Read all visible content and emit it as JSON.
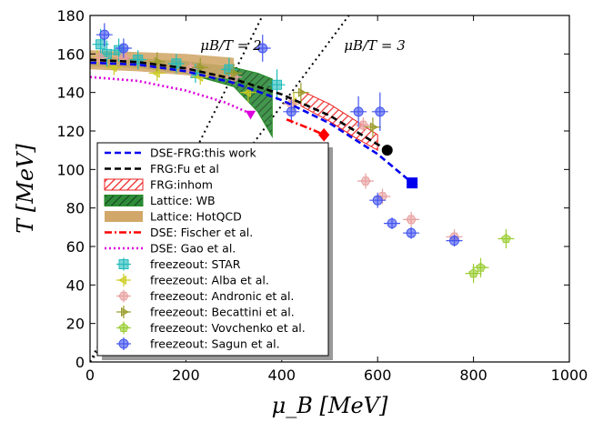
{
  "chart_data": {
    "type": "scatter",
    "xlabel": "μ_B [MeV]",
    "ylabel": "T [MeV]",
    "xlim": [
      0,
      1000
    ],
    "ylim": [
      0,
      180
    ],
    "xticks": [
      0,
      200,
      400,
      600,
      800,
      1000
    ],
    "yticks": [
      0,
      20,
      40,
      60,
      80,
      100,
      120,
      140,
      160,
      180
    ],
    "grid": false,
    "legend_position": "lower-left",
    "annotations": [
      {
        "text": "μB/T = 2",
        "x": 230,
        "y": 162
      },
      {
        "text": "μB/T = 3",
        "x": 530,
        "y": 162
      }
    ],
    "series": [
      {
        "name": "DSE-FRG:this work",
        "kind": "line",
        "style": "dashed",
        "color": "#0000ee",
        "x": [
          0,
          100,
          200,
          300,
          400,
          500,
          600,
          672
        ],
        "y": [
          155.5,
          154.5,
          151,
          145,
          136,
          124,
          108,
          93
        ],
        "endpoint": {
          "x": 672,
          "y": 93,
          "marker": "square",
          "color": "#0000ee"
        }
      },
      {
        "name": "FRG:Fu et al",
        "kind": "line",
        "style": "dashed",
        "color": "#000000",
        "x": [
          0,
          100,
          200,
          300,
          400,
          500,
          600,
          620
        ],
        "y": [
          157,
          155.8,
          152.5,
          147,
          139,
          128,
          113,
          110
        ],
        "endpoint": {
          "x": 620,
          "y": 110,
          "marker": "circle",
          "color": "#000000"
        }
      },
      {
        "name": "FRG:inhom",
        "kind": "band",
        "fill": "hatch",
        "color": "#ee2222",
        "upper": {
          "x": [
            440,
            500,
            550,
            600
          ],
          "y": [
            141,
            134,
            126,
            118
          ]
        },
        "lower": {
          "x": [
            440,
            500,
            550,
            600
          ],
          "y": [
            133,
            125,
            117,
            110
          ]
        }
      },
      {
        "name": "Lattice: WB",
        "kind": "band",
        "fill": "hatch",
        "color": "#228b22",
        "upper": {
          "x": [
            0,
            100,
            200,
            300,
            350,
            380
          ],
          "y": [
            158,
            157.5,
            156,
            153,
            150,
            147
          ]
        },
        "lower": {
          "x": [
            0,
            100,
            200,
            300,
            350,
            380
          ],
          "y": [
            154,
            153,
            150,
            143,
            130,
            117
          ]
        }
      },
      {
        "name": "Lattice: HotQCD",
        "kind": "band",
        "fill": "solid",
        "color": "#d2a86a",
        "upper": {
          "x": [
            0,
            100,
            200,
            300
          ],
          "y": [
            162,
            161,
            160,
            158
          ]
        },
        "lower": {
          "x": [
            0,
            100,
            200,
            300
          ],
          "y": [
            152,
            151,
            149,
            147
          ]
        }
      },
      {
        "name": "DSE: Fischer et al.",
        "kind": "line",
        "style": "dashdot",
        "color": "#ff0000",
        "x": [
          410,
          440,
          470,
          488
        ],
        "y": [
          126,
          123,
          120,
          118
        ],
        "endpoint": {
          "x": 488,
          "y": 118,
          "marker": "diamond",
          "color": "#ff0000"
        }
      },
      {
        "name": "DSE: Gao et al.",
        "kind": "line",
        "style": "dotted",
        "color": "#dd00dd",
        "x": [
          0,
          100,
          200,
          280,
          335
        ],
        "y": [
          148,
          146,
          141,
          135,
          129
        ],
        "endpoint": {
          "x": 335,
          "y": 129,
          "marker": "triangle-down",
          "color": "#dd00dd"
        }
      },
      {
        "name": "freezeout: STAR",
        "kind": "points",
        "marker": "square",
        "color": "#22bbbb",
        "points": [
          [
            22,
            165,
            8
          ],
          [
            35,
            160,
            7
          ],
          [
            60,
            162,
            6
          ],
          [
            100,
            157,
            5
          ],
          [
            180,
            155,
            5
          ],
          [
            220,
            150,
            5
          ],
          [
            290,
            152,
            6
          ],
          [
            390,
            144,
            8
          ]
        ]
      },
      {
        "name": "freezeout: Alba et al.",
        "kind": "points",
        "marker": "triangle-left",
        "color": "#cccc22",
        "points": [
          [
            15,
            158,
            4
          ],
          [
            50,
            153,
            4
          ],
          [
            140,
            150,
            4
          ],
          [
            230,
            148,
            4
          ],
          [
            330,
            140,
            5
          ],
          [
            425,
            135,
            5
          ]
        ]
      },
      {
        "name": "freezeout: Andronic et al.",
        "kind": "points",
        "marker": "hexagon",
        "color": "#e8a0a0",
        "points": [
          [
            20,
            158,
            4
          ],
          [
            70,
            158,
            4
          ],
          [
            210,
            152,
            4
          ],
          [
            300,
            148,
            4
          ],
          [
            420,
            134,
            4
          ],
          [
            570,
            123,
            4
          ],
          [
            575,
            94,
            4
          ],
          [
            610,
            86,
            4
          ],
          [
            670,
            74,
            4
          ],
          [
            760,
            65,
            4
          ]
        ]
      },
      {
        "name": "freezeout: Becattini et al.",
        "kind": "points",
        "marker": "triangle-right",
        "color": "#9b9b2b",
        "points": [
          [
            140,
            156,
            5
          ],
          [
            230,
            153,
            5
          ],
          [
            300,
            150,
            5
          ],
          [
            440,
            140,
            5
          ],
          [
            590,
            122,
            5
          ]
        ]
      },
      {
        "name": "freezeout: Vovchenko et al.",
        "kind": "points",
        "marker": "pentagon",
        "color": "#9acd32",
        "points": [
          [
            800,
            46,
            5
          ],
          [
            815,
            49,
            5
          ],
          [
            868,
            64,
            5
          ]
        ]
      },
      {
        "name": "freezeout: Sagun et al.",
        "kind": "points",
        "marker": "circle",
        "color": "#4455ee",
        "points": [
          [
            30,
            170,
            6
          ],
          [
            70,
            163,
            5
          ],
          [
            360,
            163,
            7
          ],
          [
            420,
            130,
            6
          ],
          [
            560,
            130,
            8
          ],
          [
            605,
            130,
            10
          ],
          [
            630,
            72,
            3
          ],
          [
            670,
            67,
            3
          ],
          [
            760,
            63,
            3
          ],
          [
            600,
            84,
            4
          ]
        ]
      }
    ],
    "legend": [
      "DSE-FRG:this work",
      "FRG:Fu et al",
      "FRG:inhom",
      "Lattice: WB",
      "Lattice: HotQCD",
      "DSE: Fischer et al.",
      "DSE: Gao et al.",
      "freezeout: STAR",
      "freezeout: Alba et al.",
      "freezeout: Andronic et al.",
      "freezeout: Becattini et al.",
      "freezeout: Vovchenko et al.",
      "freezeout: Sagun et al."
    ]
  }
}
